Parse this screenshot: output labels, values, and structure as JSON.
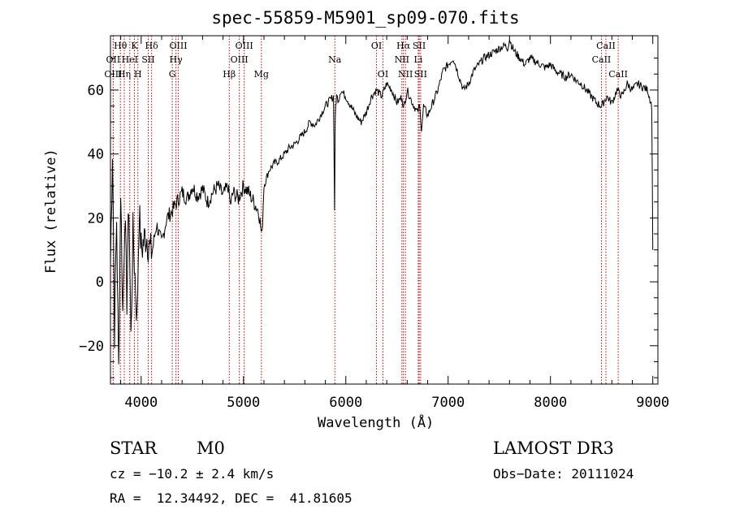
{
  "chart_data": {
    "type": "line",
    "title": "spec-55859-M5901_sp09-070.fits",
    "xlabel": "Wavelength (Å)",
    "ylabel": "Flux (relative)",
    "xlim": [
      3700,
      9050
    ],
    "ylim": [
      -32,
      77
    ],
    "xticks": [
      4000,
      5000,
      6000,
      7000,
      8000,
      9000
    ],
    "yticks": [
      -20,
      0,
      20,
      40,
      60
    ],
    "series": [
      {
        "name": "Flux",
        "x": [
          3700,
          3720,
          3740,
          3760,
          3780,
          3800,
          3820,
          3840,
          3860,
          3880,
          3900,
          3920,
          3940,
          3960,
          3980,
          4000,
          4050,
          4100,
          4150,
          4200,
          4250,
          4300,
          4350,
          4400,
          4450,
          4500,
          4550,
          4600,
          4650,
          4700,
          4750,
          4800,
          4850,
          4870,
          4900,
          4950,
          5000,
          5050,
          5100,
          5150,
          5180,
          5200,
          5250,
          5300,
          5350,
          5400,
          5450,
          5500,
          5550,
          5600,
          5650,
          5700,
          5750,
          5800,
          5850,
          5880,
          5890,
          5895,
          5900,
          5910,
          5930,
          5950,
          6000,
          6050,
          6100,
          6150,
          6200,
          6250,
          6300,
          6350,
          6400,
          6450,
          6500,
          6550,
          6563,
          6600,
          6650,
          6700,
          6720,
          6740,
          6760,
          6800,
          6850,
          6900,
          6950,
          7000,
          7050,
          7100,
          7150,
          7200,
          7250,
          7300,
          7350,
          7400,
          7450,
          7500,
          7550,
          7580,
          7600,
          7620,
          7650,
          7700,
          7750,
          7800,
          7850,
          7900,
          7950,
          8000,
          8050,
          8100,
          8150,
          8200,
          8250,
          8300,
          8350,
          8400,
          8450,
          8500,
          8550,
          8600,
          8650,
          8700,
          8750,
          8800,
          8850,
          8900,
          8950,
          8990,
          9000
        ],
        "y": [
          5,
          42,
          -15,
          20,
          -28,
          30,
          -10,
          22,
          -5,
          25,
          -18,
          15,
          2,
          -12,
          22,
          10,
          15,
          8,
          18,
          12,
          20,
          22,
          25,
          28,
          26,
          30,
          27,
          29,
          25,
          28,
          30,
          27,
          30,
          24,
          28,
          26,
          30,
          28,
          25,
          22,
          14,
          30,
          35,
          37,
          38,
          40,
          42,
          43,
          45,
          47,
          50,
          49,
          52,
          55,
          57,
          58,
          22,
          45,
          55,
          58,
          57,
          60,
          58,
          55,
          52,
          50,
          53,
          58,
          60,
          58,
          62,
          60,
          56,
          58,
          54,
          60,
          56,
          53,
          55,
          48,
          55,
          52,
          56,
          60,
          66,
          68,
          70,
          65,
          60,
          62,
          66,
          68,
          70,
          71,
          72,
          73,
          74,
          73,
          76,
          74,
          72,
          70,
          68,
          70,
          69,
          68,
          67,
          68,
          66,
          65,
          64,
          65,
          63,
          62,
          60,
          58,
          56,
          55,
          58,
          56,
          60,
          58,
          62,
          60,
          62,
          61,
          60,
          55,
          10
        ]
      }
    ],
    "lines": [
      {
        "label": "Hθ",
        "x": 3797,
        "row": 0
      },
      {
        "label": "OII",
        "x": 3727,
        "row": 1
      },
      {
        "label": "OIII",
        "x": 3727,
        "row": 2
      },
      {
        "label": "Hη",
        "x": 3835,
        "row": 2
      },
      {
        "label": "HeI",
        "x": 3889,
        "row": 1
      },
      {
        "label": "K",
        "x": 3934,
        "row": 0
      },
      {
        "label": "SII",
        "x": 4069,
        "row": 1
      },
      {
        "label": "H",
        "x": 3968,
        "row": 2
      },
      {
        "label": "Hδ",
        "x": 4102,
        "row": 0
      },
      {
        "label": "OIII",
        "x": 4363,
        "row": 0
      },
      {
        "label": "Hγ",
        "x": 4340,
        "row": 1
      },
      {
        "label": "G",
        "x": 4304,
        "row": 2
      },
      {
        "label": "Hβ",
        "x": 4861,
        "row": 2
      },
      {
        "label": "OIII",
        "x": 5007,
        "row": 0
      },
      {
        "label": "OIII",
        "x": 4959,
        "row": 1
      },
      {
        "label": "Mg",
        "x": 5175,
        "row": 2
      },
      {
        "label": "Na",
        "x": 5893,
        "row": 1
      },
      {
        "label": "OI",
        "x": 6300,
        "row": 0
      },
      {
        "label": "OI",
        "x": 6363,
        "row": 2
      },
      {
        "label": "Hα",
        "x": 6563,
        "row": 0
      },
      {
        "label": "NII",
        "x": 6548,
        "row": 1
      },
      {
        "label": "NII",
        "x": 6583,
        "row": 2
      },
      {
        "label": "SII",
        "x": 6717,
        "row": 0
      },
      {
        "label": "Li",
        "x": 6708,
        "row": 1
      },
      {
        "label": "SII",
        "x": 6731,
        "row": 2
      },
      {
        "label": "CaII",
        "x": 8542,
        "row": 0
      },
      {
        "label": "CaII",
        "x": 8498,
        "row": 1
      },
      {
        "label": "CaII",
        "x": 8662,
        "row": 2
      }
    ]
  },
  "info": {
    "object_type": "STAR",
    "subclass": "M0",
    "survey": "LAMOST DR3",
    "redshift": "cz = −10.2 ± 2.4 km/s",
    "obs_date": "Obs−Date: 20111024",
    "coords": "RA =  12.34492, DEC =  41.81605"
  }
}
